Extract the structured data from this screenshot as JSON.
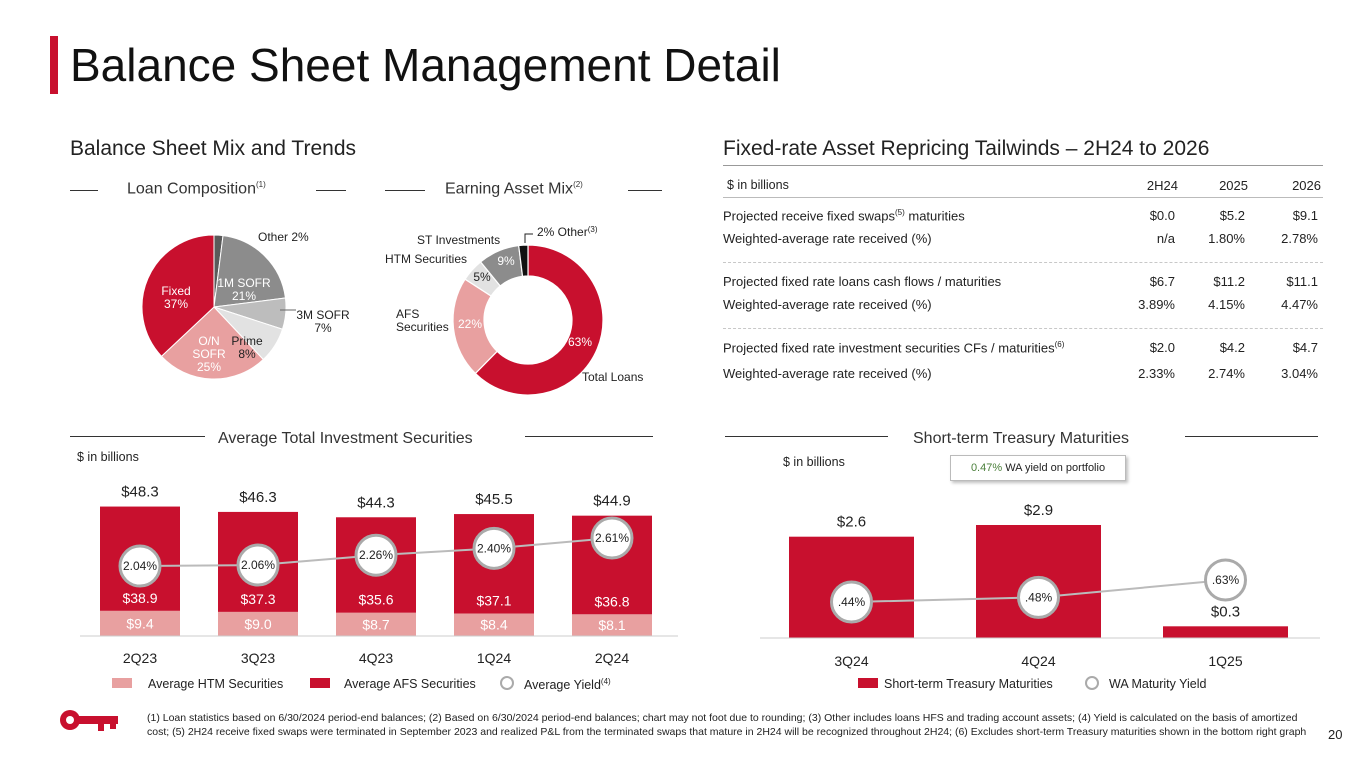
{
  "title": "Balance Sheet Management Detail",
  "page_number": "20",
  "colors": {
    "brand_red": "#C8102E",
    "light_red": "#E8A0A0",
    "gray": "#999999",
    "dark_gray": "#777777"
  },
  "left_section": {
    "title": "Balance Sheet Mix and Trends",
    "loan_title": "Loan Composition",
    "loan_sup": "(1)",
    "earning_title": "Earning Asset Mix",
    "earning_sup": "(2)"
  },
  "right_section": {
    "title": "Fixed-rate Asset Repricing Tailwinds – 2H24 to 2026"
  },
  "repricing_table": {
    "unit": "$ in billions",
    "columns": [
      "2H24",
      "2025",
      "2026"
    ],
    "rows": [
      {
        "label": "Projected receive fixed swaps",
        "sup": "(5)",
        "label_tail": " maturities",
        "values": [
          "$0.0",
          "$5.2",
          "$9.1"
        ]
      },
      {
        "label": "Weighted-average rate received (%)",
        "sup": "",
        "label_tail": "",
        "values": [
          "n/a",
          "1.80%",
          "2.78%"
        ]
      },
      {
        "label": "Projected fixed rate loans cash flows / maturities",
        "sup": "",
        "label_tail": "",
        "values": [
          "$6.7",
          "$11.2",
          "$11.1"
        ]
      },
      {
        "label": "Weighted-average rate received (%)",
        "sup": "",
        "label_tail": "",
        "values": [
          "3.89%",
          "4.15%",
          "4.47%"
        ]
      },
      {
        "label": "Projected fixed rate investment securities CFs / maturities",
        "sup": "(6)",
        "label_tail": "",
        "values": [
          "$2.0",
          "$4.2",
          "$4.7"
        ]
      },
      {
        "label": "Weighted-average rate received (%)",
        "sup": "",
        "label_tail": "",
        "values": [
          "2.33%",
          "2.74%",
          "3.04%"
        ]
      }
    ]
  },
  "bottom_left": {
    "title": "Average Total Investment Securities",
    "unit": "$ in billions",
    "legend": {
      "htm": "Average HTM Securities",
      "afs": "Average AFS Securities",
      "yield": "Average Yield",
      "yield_sup": "(4)"
    }
  },
  "bottom_right": {
    "title": "Short-term Treasury Maturities",
    "unit": "$ in billions",
    "callout_value": "0.47%",
    "callout_text": " WA yield on portfolio",
    "legend": {
      "bars": "Short-term Treasury Maturities",
      "yield": "WA Maturity Yield"
    }
  },
  "footnote": "(1) Loan statistics based on 6/30/2024 period-end balances; (2) Based on 6/30/2024 period-end balances; chart may not foot due to rounding; (3) Other includes loans HFS and trading account assets; (4) Yield is calculated on the basis of amortized cost; (5) 2H24 receive fixed swaps were terminated in September 2023 and realized P&L from the terminated swaps that mature in 2H24 will be recognized throughout 2H24; (6) Excludes short-term Treasury maturities shown in the bottom right graph",
  "chart_data": [
    {
      "type": "pie",
      "title": "Loan Composition",
      "slices": [
        {
          "label": "Other",
          "value": 2,
          "display": "Other 2%",
          "color": "#5a5a5a"
        },
        {
          "label": "1M SOFR",
          "value": 21,
          "display": "1M SOFR\n21%",
          "color": "#8c8c8c"
        },
        {
          "label": "3M SOFR",
          "value": 7,
          "display": "3M SOFR\n7%",
          "color": "#bdbdbd"
        },
        {
          "label": "Prime",
          "value": 8,
          "display": "Prime\n8%",
          "color": "#e2e2e2"
        },
        {
          "label": "O/N SOFR",
          "value": 25,
          "display": "O/N\nSOFR\n25%",
          "color": "#E8A0A0"
        },
        {
          "label": "Fixed",
          "value": 37,
          "display": "Fixed\n37%",
          "color": "#C8102E"
        }
      ]
    },
    {
      "type": "pie",
      "title": "Earning Asset Mix",
      "donut": true,
      "slices": [
        {
          "label": "Total Loans",
          "value": 63,
          "pct": "63%",
          "color": "#C8102E"
        },
        {
          "label": "AFS Securities",
          "value": 22,
          "pct": "22%",
          "color": "#E8A0A0"
        },
        {
          "label": "HTM Securities",
          "value": 5,
          "pct": "5%",
          "color": "#e2e2e2"
        },
        {
          "label": "ST Investments",
          "value": 9,
          "pct": "9%",
          "color": "#8c8c8c"
        },
        {
          "label": "Other",
          "value": 2,
          "pct": "2%",
          "color": "#111111"
        }
      ],
      "other_label": "2% Other",
      "other_sup": "(3)"
    },
    {
      "type": "bar",
      "title": "Average Total Investment Securities",
      "stacked": true,
      "categories": [
        "2Q23",
        "3Q23",
        "4Q23",
        "1Q24",
        "2Q24"
      ],
      "series": [
        {
          "name": "Average HTM Securities",
          "values": [
            9.4,
            9.0,
            8.7,
            8.4,
            8.1
          ],
          "labels": [
            "$9.4",
            "$9.0",
            "$8.7",
            "$8.4",
            "$8.1"
          ]
        },
        {
          "name": "Average AFS Securities",
          "values": [
            38.9,
            37.3,
            35.6,
            37.1,
            36.8
          ],
          "labels": [
            "$38.9",
            "$37.3",
            "$35.6",
            "$37.1",
            "$36.8"
          ]
        }
      ],
      "totals": [
        "$48.3",
        "$46.3",
        "$44.3",
        "$45.5",
        "$44.9"
      ],
      "total_values": [
        48.3,
        46.3,
        44.3,
        45.5,
        44.9
      ],
      "line": {
        "name": "Average Yield",
        "values": [
          2.04,
          2.06,
          2.26,
          2.4,
          2.61
        ],
        "labels": [
          "2.04%",
          "2.06%",
          "2.26%",
          "2.40%",
          "2.61%"
        ]
      }
    },
    {
      "type": "bar",
      "title": "Short-term Treasury Maturities",
      "categories": [
        "3Q24",
        "4Q24",
        "1Q25"
      ],
      "values": [
        2.6,
        2.9,
        0.3
      ],
      "value_labels": [
        "$2.6",
        "$2.9",
        "$0.3"
      ],
      "line": {
        "name": "WA Maturity Yield",
        "values": [
          0.44,
          0.48,
          0.63
        ],
        "labels": [
          ".44%",
          ".48%",
          ".63%"
        ]
      }
    }
  ]
}
